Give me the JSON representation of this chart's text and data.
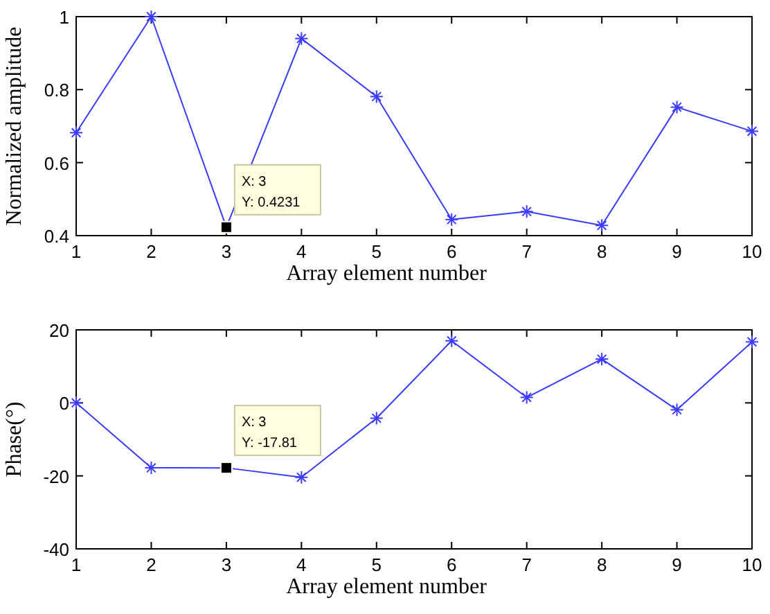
{
  "chart_data": [
    {
      "type": "line",
      "xlabel": "Array element number",
      "ylabel": "Normalized amplitude",
      "x": [
        1,
        2,
        3,
        4,
        5,
        6,
        7,
        8,
        9,
        10
      ],
      "xlim": [
        1,
        10
      ],
      "xticks": [
        1,
        2,
        3,
        4,
        5,
        6,
        7,
        8,
        9,
        10
      ],
      "ylim": [
        0.4,
        1
      ],
      "yticks": [
        0.4,
        0.6,
        0.8,
        1
      ],
      "marker": "cross",
      "line_style": "solid",
      "grid": false,
      "series": [
        {
          "color": "#3a3aff",
          "values": [
            0.682,
            1.0,
            0.4231,
            0.94,
            0.781,
            0.444,
            0.466,
            0.428,
            0.752,
            0.686
          ]
        }
      ],
      "annotations": [
        {
          "text": "X: 3\nY: 0.4231",
          "x": 3,
          "y": 0.4231
        }
      ]
    },
    {
      "type": "line",
      "xlabel": "Array element number",
      "ylabel": "Phase(°)",
      "x": [
        1,
        2,
        3,
        4,
        5,
        6,
        7,
        8,
        9,
        10
      ],
      "xlim": [
        1,
        10
      ],
      "xticks": [
        1,
        2,
        3,
        4,
        5,
        6,
        7,
        8,
        9,
        10
      ],
      "ylim": [
        -40,
        20
      ],
      "yticks": [
        -40,
        -20,
        0,
        20
      ],
      "marker": "cross",
      "line_style": "solid",
      "grid": false,
      "series": [
        {
          "color": "#3a3aff",
          "values": [
            0,
            -17.8,
            -17.81,
            -20.4,
            -4.2,
            17,
            1.5,
            12,
            -1.9,
            16.7
          ]
        }
      ],
      "annotations": [
        {
          "text": "X: 3\nY: -17.81",
          "x": 3,
          "y": -17.81
        }
      ]
    }
  ]
}
